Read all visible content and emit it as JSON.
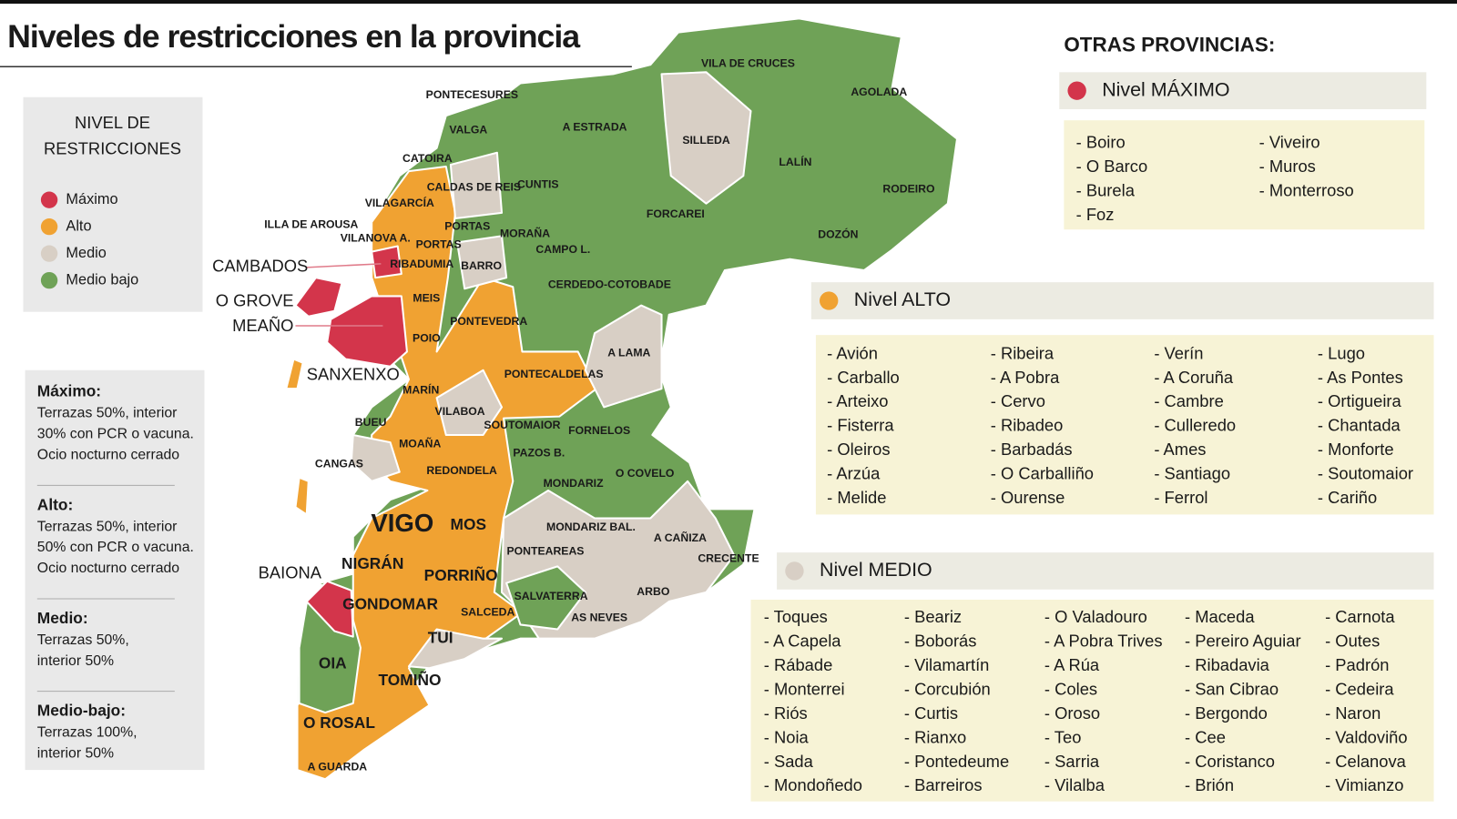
{
  "title": "Niveles de restricciones en la provincia",
  "legend": {
    "title": [
      "NIVEL DE",
      "RESTRICCIONES"
    ],
    "items": [
      {
        "label": "Máximo",
        "color": "#d3354b"
      },
      {
        "label": "Alto",
        "color": "#f0a232"
      },
      {
        "label": "Medio",
        "color": "#d8cfc5"
      },
      {
        "label": "Medio bajo",
        "color": "#6fa257"
      }
    ]
  },
  "rules": [
    {
      "heading": "Máximo:",
      "lines": [
        "Terrazas 50%, interior",
        "30% con PCR o vacuna.",
        "Ocio nocturno cerrado"
      ]
    },
    {
      "heading": "Alto:",
      "lines": [
        "Terrazas 50%, interior",
        "50% con PCR o vacuna.",
        "Ocio nocturno cerrado"
      ]
    },
    {
      "heading": "Medio:",
      "lines": [
        "Terrazas 50%,",
        "interior 50%"
      ]
    },
    {
      "heading": "Medio-bajo:",
      "lines": [
        "Terrazas 100%,",
        "interior 50%"
      ]
    }
  ],
  "map_labels": [
    "VILA DE CRUCES",
    "AGOLADA",
    "PONTECESURES",
    "A ESTRADA",
    "VALGA",
    "SILLEDA",
    "LALÍN",
    "CATOIRA",
    "CALDAS DE REIS",
    "CUNTIS",
    "RODEIRO",
    "VILAGARCÍA",
    "FORCAREI",
    "ILLA DE AROUSA",
    "PORTAS",
    "MORAÑA",
    "DOZÓN",
    "VILANOVA A.",
    "PORTAS",
    "CAMPO L.",
    "RIBADUMIA",
    "BARRO",
    "CAMBADOS",
    "CERDEDO-COTOBADE",
    "MEIS",
    "O GROVE",
    "PONTEVEDRA",
    "MEAÑO",
    "POIO",
    "A LAMA",
    "SANXENXO",
    "PONTECALDELAS",
    "MARÍN",
    "VILABOA",
    "BUEU",
    "SOUTOMAIOR",
    "FORNELOS",
    "MOAÑA",
    "PAZOS B.",
    "CANGAS",
    "REDONDELA",
    "O COVELO",
    "MONDARIZ",
    "VIGO",
    "MOS",
    "MONDARIZ BAL.",
    "A CAÑIZA",
    "PONTEAREAS",
    "CRECENTE",
    "NIGRÁN",
    "BAIONA",
    "PORRIÑO",
    "SALVATERRA",
    "ARBO",
    "GONDOMAR",
    "SALCEDA",
    "AS NEVES",
    "TUI",
    "OIA",
    "TOMIÑO",
    "O ROSAL",
    "A GUARDA"
  ],
  "other_provinces": {
    "title": "OTRAS PROVINCIAS:",
    "levels": [
      {
        "name": "Nivel MÁXIMO",
        "color": "#d3354b",
        "columns": [
          [
            "- Boiro",
            "- O Barco",
            "- Burela",
            "- Foz"
          ],
          [
            "- Viveiro",
            "- Muros",
            "- Monterroso"
          ]
        ]
      },
      {
        "name": "Nivel ALTO",
        "color": "#f0a232",
        "columns": [
          [
            "- Avión",
            "- Carballo",
            "- Arteixo",
            "- Fisterra",
            "- Oleiros",
            "- Arzúa",
            "- Melide"
          ],
          [
            "- Ribeira",
            "- A Pobra",
            "- Cervo",
            "- Ribadeo",
            "- Barbadás",
            "- O Carballiño",
            "- Ourense"
          ],
          [
            "- Verín",
            "- A Coruña",
            "- Cambre",
            "- Culleredo",
            "- Ames",
            "- Santiago",
            "- Ferrol"
          ],
          [
            "- Lugo",
            "- As Pontes",
            "- Ortigueira",
            "- Chantada",
            "- Monforte",
            "- Soutomaior",
            "- Cariño"
          ]
        ]
      },
      {
        "name": "Nivel MEDIO",
        "color": "#d8cfc5",
        "columns": [
          [
            "- Toques",
            "- A Capela",
            "- Rábade",
            "- Monterrei",
            "- Riós",
            "- Noia",
            "- Sada",
            "- Mondoñedo"
          ],
          [
            "- Beariz",
            "- Boborás",
            "- Vilamartín",
            "- Corcubión",
            "- Curtis",
            "- Rianxo",
            "- Pontedeume",
            "- Barreiros"
          ],
          [
            "- O Valadouro",
            "- A Pobra Trives",
            "- A Rúa",
            "- Coles",
            "- Oroso",
            "- Teo",
            "- Sarria",
            "- Vilalba"
          ],
          [
            "- Maceda",
            "- Pereiro Aguiar",
            "- Ribadavia",
            "- San Cibrao",
            "- Bergondo",
            "- Cee",
            "- Coristanco",
            "- Brión"
          ],
          [
            "- Carnota",
            "- Outes",
            "- Padrón",
            "- Cedeira",
            "- Naron",
            "- Valdoviño",
            "- Celanova",
            "- Vimianzo"
          ]
        ]
      }
    ]
  }
}
